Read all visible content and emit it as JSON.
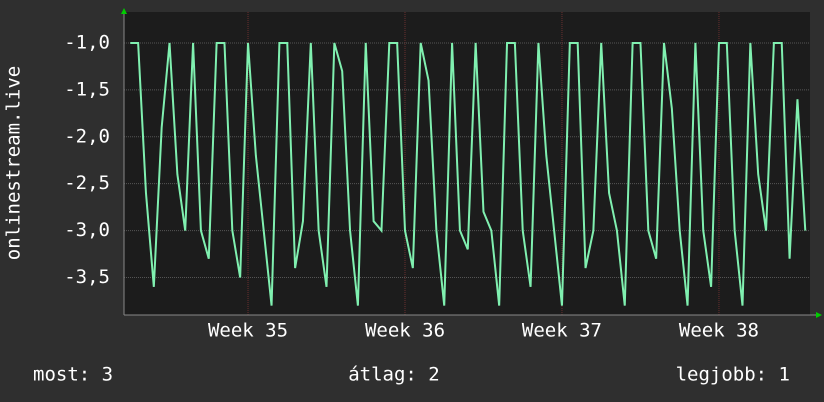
{
  "chart_data": {
    "type": "line",
    "y_label": "onlinestream.live",
    "x": [
      34.25,
      34.3,
      34.35,
      34.4,
      34.45,
      34.5,
      34.55,
      34.6,
      34.65,
      34.7,
      34.75,
      34.8,
      34.85,
      34.9,
      34.95,
      35,
      35.05,
      35.1,
      35.15,
      35.2,
      35.25,
      35.3,
      35.35,
      35.4,
      35.45,
      35.5,
      35.55,
      35.6,
      35.65,
      35.7,
      35.75,
      35.8,
      35.85,
      35.9,
      35.95,
      36,
      36.05,
      36.1,
      36.15,
      36.2,
      36.25,
      36.3,
      36.35,
      36.4,
      36.45,
      36.5,
      36.55,
      36.6,
      36.65,
      36.7,
      36.75,
      36.8,
      36.85,
      36.9,
      36.95,
      37,
      37.05,
      37.1,
      37.15,
      37.2,
      37.25,
      37.3,
      37.35,
      37.4,
      37.45,
      37.5,
      37.55,
      37.6,
      37.65,
      37.7,
      37.75,
      37.8,
      37.85,
      37.9,
      37.95,
      38,
      38.05,
      38.1,
      38.15,
      38.2,
      38.25,
      38.3,
      38.35,
      38.4,
      38.45,
      38.5,
      38.55
    ],
    "series": [
      {
        "color": "#80f0b0",
        "values": [
          -1,
          -1,
          -2.6,
          -3.6,
          -1.9,
          -1,
          -2.4,
          -3,
          -1,
          -3,
          -3.3,
          -1,
          -1,
          -3,
          -3.5,
          -1,
          -2.2,
          -3,
          -3.8,
          -1,
          -1,
          -3.4,
          -2.9,
          -1,
          -3,
          -3.6,
          -1,
          -1.3,
          -3,
          -3.8,
          -1,
          -2.9,
          -3,
          -1,
          -1,
          -3,
          -3.4,
          -1,
          -1.4,
          -3,
          -3.8,
          -1,
          -3,
          -3.2,
          -1,
          -2.8,
          -3,
          -3.8,
          -1,
          -1,
          -3,
          -3.6,
          -1,
          -2.2,
          -3,
          -3.8,
          -1,
          -1,
          -3.4,
          -3,
          -1,
          -2.6,
          -3,
          -3.8,
          -1,
          -1,
          -3,
          -3.3,
          -1,
          -1.7,
          -3,
          -3.8,
          -1,
          -3,
          -3.6,
          -1,
          -1,
          -3,
          -3.8,
          -1,
          -2.4,
          -3,
          -1,
          -1,
          -3.3,
          -1.6,
          -3
        ]
      }
    ],
    "xlim": [
      34.21,
      38.58
    ],
    "xticks": [
      {
        "value": 35,
        "label": "Week 35"
      },
      {
        "value": 36,
        "label": "Week 36"
      },
      {
        "value": 37,
        "label": "Week 37"
      },
      {
        "value": 38,
        "label": "Week 38"
      }
    ],
    "ylim": [
      -3.9,
      -0.67
    ],
    "yticks": [
      {
        "value": -1,
        "label": "-1,0"
      },
      {
        "value": -1.5,
        "label": "-1,5"
      },
      {
        "value": -2,
        "label": "-2,0"
      },
      {
        "value": -2.5,
        "label": "-2,5"
      },
      {
        "value": -3,
        "label": "-3,0"
      },
      {
        "value": -3.5,
        "label": "-3,5"
      }
    ],
    "grid": true,
    "stats": [
      "most: 3",
      "átlag: 2",
      "legjobb: 1"
    ]
  }
}
